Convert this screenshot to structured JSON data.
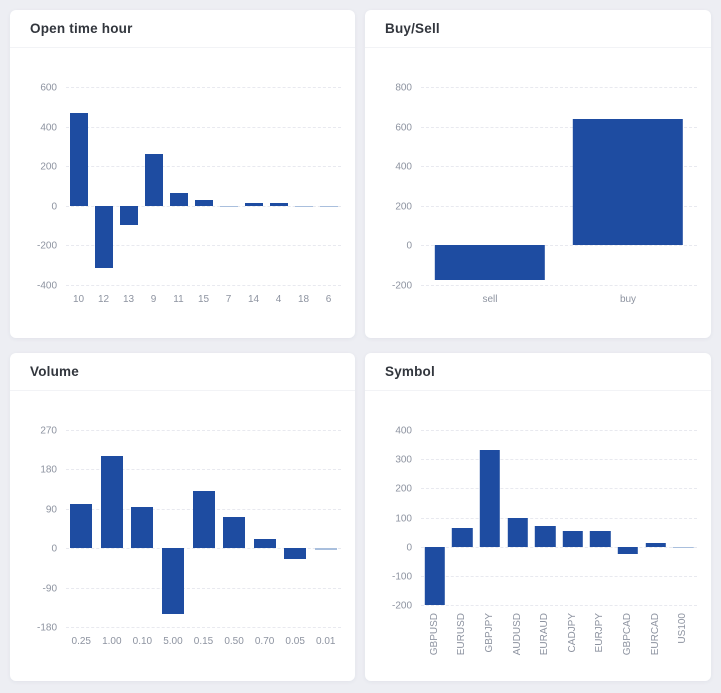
{
  "page": {
    "background": "#edeef3",
    "card_background": "#ffffff"
  },
  "colors": {
    "bar": "#1e4ca1",
    "bar_muted": "#a9bfdd",
    "grid": "#e8e9ef",
    "tick_text": "#8d93a0",
    "title_text": "#32363d"
  },
  "chart_data": [
    {
      "type": "bar",
      "title": "Open time hour",
      "categories": [
        "10",
        "12",
        "13",
        "9",
        "11",
        "15",
        "7",
        "14",
        "4",
        "18",
        "6"
      ],
      "values": [
        470,
        -315,
        -95,
        260,
        65,
        30,
        -8,
        15,
        15,
        -8,
        -2
      ],
      "ylim": [
        -400,
        600
      ],
      "yticks": [
        600,
        400,
        200,
        0,
        -200,
        -400
      ],
      "grid": "dashed-horizontal",
      "legend": "none",
      "rotate_x_labels": false
    },
    {
      "type": "bar",
      "title": "Buy/Sell",
      "categories": [
        "sell",
        "buy"
      ],
      "values": [
        -175,
        640
      ],
      "ylim": [
        -200,
        800
      ],
      "yticks": [
        800,
        600,
        400,
        200,
        0,
        -200
      ],
      "grid": "dashed-horizontal",
      "legend": "none",
      "rotate_x_labels": false
    },
    {
      "type": "bar",
      "title": "Volume",
      "categories": [
        "0.25",
        "1.00",
        "0.10",
        "5.00",
        "0.15",
        "0.50",
        "0.70",
        "0.05",
        "0.01"
      ],
      "values": [
        100,
        210,
        95,
        -150,
        130,
        72,
        20,
        -25,
        -3
      ],
      "ylim": [
        -180,
        270
      ],
      "yticks": [
        270,
        180,
        90,
        0,
        -90,
        -180
      ],
      "grid": "dashed-horizontal",
      "legend": "none",
      "rotate_x_labels": false
    },
    {
      "type": "bar",
      "title": "Symbol",
      "categories": [
        "GBPUSD",
        "EURUSD",
        "GBPJPY",
        "AUDUSD",
        "EURAUD",
        "CADJPY",
        "EURJPY",
        "GBPCAD",
        "EURCAD",
        "US100"
      ],
      "values": [
        -200,
        63,
        330,
        100,
        72,
        53,
        53,
        -25,
        14,
        -3
      ],
      "ylim": [
        -200,
        400
      ],
      "yticks": [
        400,
        300,
        200,
        100,
        0,
        -100,
        -200
      ],
      "grid": "dashed-horizontal",
      "legend": "none",
      "rotate_x_labels": true
    }
  ]
}
